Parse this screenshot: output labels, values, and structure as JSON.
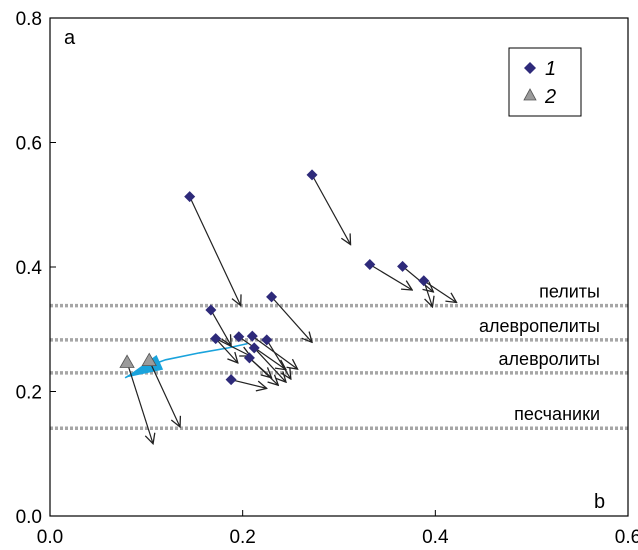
{
  "chart_data": {
    "type": "scatter",
    "xlim": [
      0.0,
      0.6
    ],
    "ylim": [
      0.0,
      0.8
    ],
    "x_ticks": [
      "0.0",
      "0.2",
      "0.4",
      "0.6"
    ],
    "y_ticks": [
      "0.0",
      "0.2",
      "0.4",
      "0.6",
      "0.8"
    ],
    "xlabel": "b",
    "ylabel": "a",
    "grid": false,
    "legend_position": "top-right",
    "colors": {
      "series1": "#2e2a7a",
      "series2": "#9b9b9b",
      "arrow": "#222222",
      "reference_line": "#a6a6a6",
      "trend": "#1aa3dc"
    },
    "series": [
      {
        "name": "1",
        "marker": "diamond",
        "points": [
          {
            "x": 0.145,
            "y": 0.513
          },
          {
            "x": 0.272,
            "y": 0.548
          },
          {
            "x": 0.332,
            "y": 0.404
          },
          {
            "x": 0.366,
            "y": 0.401
          },
          {
            "x": 0.388,
            "y": 0.378
          },
          {
            "x": 0.167,
            "y": 0.331
          },
          {
            "x": 0.23,
            "y": 0.352
          },
          {
            "x": 0.172,
            "y": 0.285
          },
          {
            "x": 0.196,
            "y": 0.288
          },
          {
            "x": 0.21,
            "y": 0.289
          },
          {
            "x": 0.225,
            "y": 0.283
          },
          {
            "x": 0.212,
            "y": 0.27
          },
          {
            "x": 0.207,
            "y": 0.254
          },
          {
            "x": 0.188,
            "y": 0.219
          }
        ]
      },
      {
        "name": "2",
        "marker": "triangle",
        "points": [
          {
            "x": 0.08,
            "y": 0.247
          },
          {
            "x": 0.103,
            "y": 0.25
          }
        ]
      }
    ],
    "arrows": [
      {
        "from": [
          0.145,
          0.513
        ],
        "to": [
          0.198,
          0.338
        ]
      },
      {
        "from": [
          0.272,
          0.548
        ],
        "to": [
          0.312,
          0.436
        ]
      },
      {
        "from": [
          0.332,
          0.404
        ],
        "to": [
          0.376,
          0.363
        ]
      },
      {
        "from": [
          0.366,
          0.401
        ],
        "to": [
          0.398,
          0.36
        ]
      },
      {
        "from": [
          0.388,
          0.378
        ],
        "to": [
          0.397,
          0.336
        ]
      },
      {
        "from": [
          0.388,
          0.378
        ],
        "to": [
          0.422,
          0.343
        ]
      },
      {
        "from": [
          0.167,
          0.331
        ],
        "to": [
          0.188,
          0.274
        ]
      },
      {
        "from": [
          0.23,
          0.352
        ],
        "to": [
          0.272,
          0.279
        ]
      },
      {
        "from": [
          0.172,
          0.285
        ],
        "to": [
          0.208,
          0.257
        ]
      },
      {
        "from": [
          0.172,
          0.285
        ],
        "to": [
          0.195,
          0.246
        ]
      },
      {
        "from": [
          0.196,
          0.288
        ],
        "to": [
          0.245,
          0.235
        ]
      },
      {
        "from": [
          0.21,
          0.289
        ],
        "to": [
          0.257,
          0.236
        ]
      },
      {
        "from": [
          0.225,
          0.283
        ],
        "to": [
          0.25,
          0.22
        ]
      },
      {
        "from": [
          0.212,
          0.27
        ],
        "to": [
          0.245,
          0.215
        ]
      },
      {
        "from": [
          0.207,
          0.254
        ],
        "to": [
          0.237,
          0.21
        ]
      },
      {
        "from": [
          0.207,
          0.254
        ],
        "to": [
          0.23,
          0.222
        ]
      },
      {
        "from": [
          0.188,
          0.219
        ],
        "to": [
          0.225,
          0.205
        ]
      },
      {
        "from": [
          0.08,
          0.247
        ],
        "to": [
          0.107,
          0.116
        ]
      },
      {
        "from": [
          0.103,
          0.25
        ],
        "to": [
          0.135,
          0.143
        ]
      }
    ],
    "reference_lines": [
      {
        "label": "пелиты",
        "y": 0.338
      },
      {
        "label": "алевропелиты",
        "y": 0.283
      },
      {
        "label": "алевролиты",
        "y": 0.23
      },
      {
        "label": "песчаники",
        "y": 0.141
      }
    ],
    "trend_line": {
      "points": [
        [
          0.078,
          0.222
        ],
        [
          0.095,
          0.237
        ],
        [
          0.12,
          0.251
        ],
        [
          0.155,
          0.262
        ],
        [
          0.185,
          0.27
        ],
        [
          0.205,
          0.277
        ]
      ]
    }
  }
}
